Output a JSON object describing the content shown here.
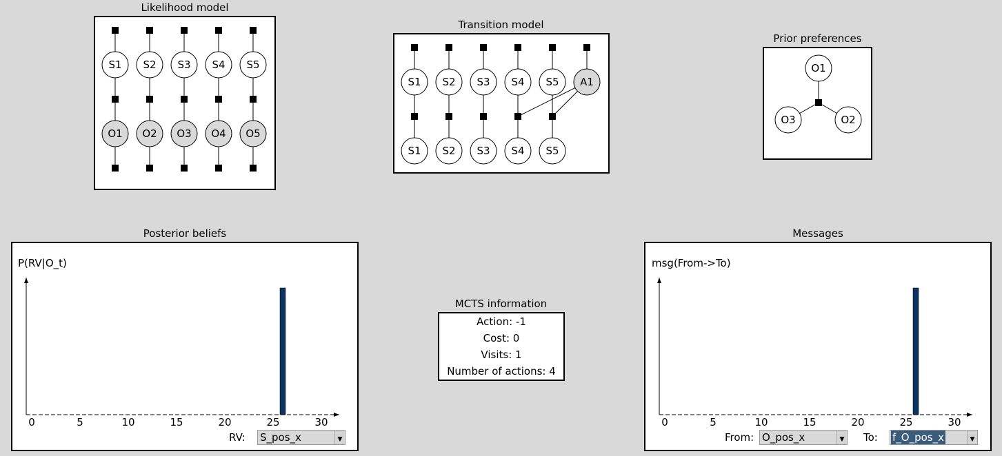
{
  "likelihood": {
    "title": "Likelihood model",
    "states": [
      "S1",
      "S2",
      "S3",
      "S4",
      "S5"
    ],
    "observations": [
      "O1",
      "O2",
      "O3",
      "O4",
      "O5"
    ]
  },
  "transition": {
    "title": "Transition model",
    "top": [
      "S1",
      "S2",
      "S3",
      "S4",
      "S5",
      "A1"
    ],
    "bottom": [
      "S1",
      "S2",
      "S3",
      "S4",
      "S5"
    ]
  },
  "prior": {
    "title": "Prior preferences",
    "nodes": [
      "O1",
      "O3",
      "O2"
    ]
  },
  "posterior": {
    "title": "Posterior beliefs",
    "ylabel": "P(RV|O_t)",
    "rv_label": "RV:",
    "rv_value": "S_pos_x"
  },
  "mcts": {
    "title": "MCTS information",
    "lines": [
      "Action: -1",
      "Cost: 0",
      "Visits: 1",
      "Number of actions: 4"
    ]
  },
  "messages": {
    "title": "Messages",
    "ylabel": "msg(From->To)",
    "from_label": "From:",
    "from_value": "O_pos_x",
    "to_label": "To:",
    "to_value": "f_O_pos_x"
  },
  "chart_data": [
    {
      "type": "bar",
      "ylabel": "P(RV|O_t)",
      "xlim": [
        0,
        32
      ],
      "xticks": [
        0,
        5,
        10,
        15,
        20,
        25,
        30
      ],
      "x": [
        26
      ],
      "values": [
        1
      ],
      "ylim": [
        0,
        1.1
      ],
      "color": "#0b3460"
    },
    {
      "type": "bar",
      "ylabel": "msg(From->To)",
      "xlim": [
        0,
        32
      ],
      "xticks": [
        0,
        5,
        10,
        15,
        20,
        25,
        30
      ],
      "x": [
        26
      ],
      "values": [
        1
      ],
      "ylim": [
        0,
        1.1
      ],
      "color": "#0b3460"
    }
  ]
}
